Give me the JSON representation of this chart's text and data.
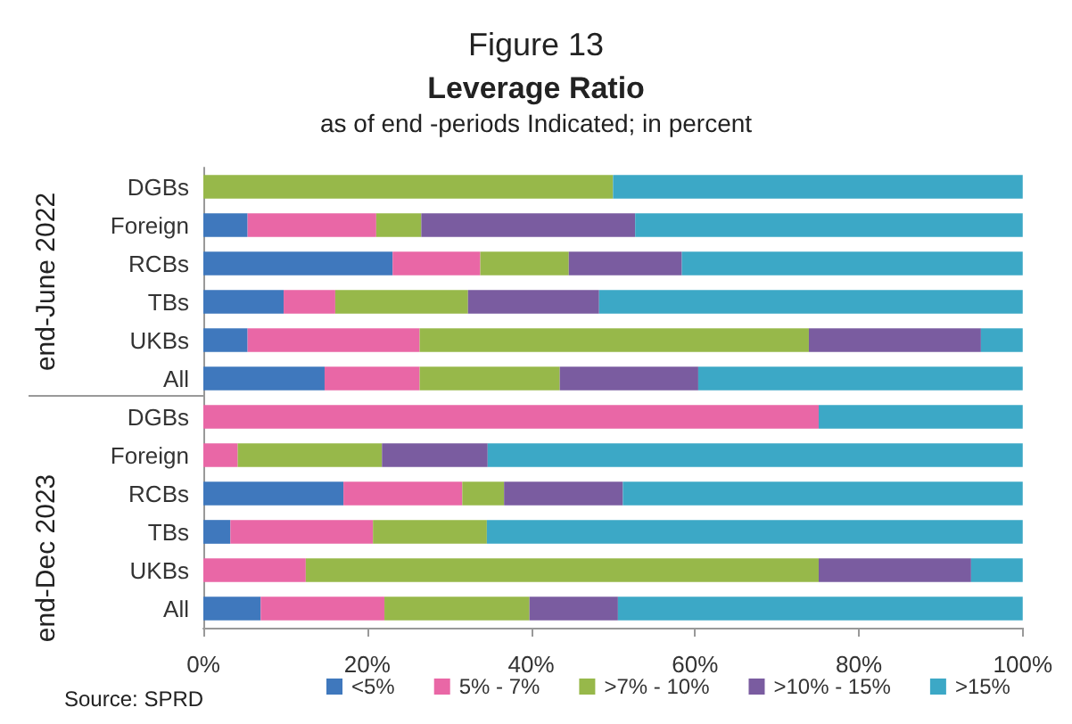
{
  "chart_data": {
    "type": "bar",
    "orientation": "horizontal",
    "stacked": true,
    "title": "Leverage Ratio",
    "subtitle": "as of end -periods Indicated; in percent",
    "annotations": [
      "Figure 13",
      "end-June 2022",
      "end-Dec 2023",
      "Source: SPRD"
    ],
    "categories": [
      "DGBs",
      "Foreign",
      "RCBs",
      "TBs",
      "UKBs",
      "All",
      "DGBs",
      "Foreign",
      "RCBs",
      "TBs",
      "UKBs",
      "All"
    ],
    "series": [
      {
        "name": "<5%",
        "color": "#3f78bd",
        "values": [
          0,
          5.4,
          23.1,
          9.8,
          5.4,
          14.8,
          0,
          0,
          17.1,
          3.3,
          0,
          7.0
        ]
      },
      {
        "name": "5% - 7%",
        "color": "#e967a6",
        "values": [
          0,
          15.7,
          10.7,
          6.3,
          21.0,
          11.6,
          75.1,
          4.2,
          14.5,
          17.4,
          12.5,
          15.1
        ]
      },
      {
        "name": ">7% - 10%",
        "color": "#97b84a",
        "values": [
          50.0,
          5.5,
          10.8,
          16.2,
          47.5,
          17.1,
          0,
          17.6,
          5.1,
          13.9,
          62.6,
          17.7
        ]
      },
      {
        "name": ">10% - 15%",
        "color": "#7a5ca0",
        "values": [
          0,
          26.1,
          13.8,
          16.0,
          21.0,
          16.9,
          0,
          12.9,
          14.5,
          0,
          18.6,
          10.8
        ]
      },
      {
        "name": ">15%",
        "color": "#3ca8c6",
        "values": [
          50.0,
          47.3,
          41.6,
          51.7,
          5.1,
          39.6,
          24.9,
          65.3,
          48.8,
          65.4,
          6.3,
          49.4
        ]
      }
    ],
    "xlim": [
      0,
      100
    ],
    "xticks": [
      {
        "value": 0,
        "label": "0%"
      },
      {
        "value": 20,
        "label": "20%"
      },
      {
        "value": 40,
        "label": "40%"
      },
      {
        "value": 60,
        "label": "60%"
      },
      {
        "value": 80,
        "label": "80%"
      },
      {
        "value": 100,
        "label": "100%"
      }
    ],
    "grid": false,
    "legend": "bottom"
  }
}
